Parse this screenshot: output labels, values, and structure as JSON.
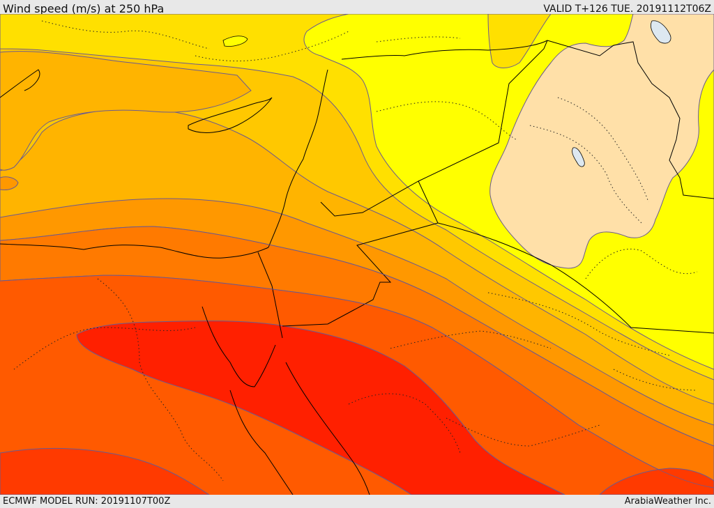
{
  "header": {
    "title": "Wind speed (m/s) at 250 hPa",
    "valid": "VALID T+126 TUE. 20191112T06Z"
  },
  "footer": {
    "model_run": "ECMWF MODEL RUN: 20191107T00Z",
    "credit": "ArabiaWeather Inc."
  },
  "colors": {
    "band_1": "#ffe0a8",
    "band_2": "#ffff00",
    "band_3": "#ffe000",
    "band_4": "#ffc800",
    "band_5": "#ffb400",
    "band_6": "#ff9800",
    "band_7": "#ff7a00",
    "band_8": "#ff5a00",
    "band_9": "#ff3a00",
    "band_10": "#ff2000",
    "water": "#dde8f0",
    "border": "#000000",
    "contour": "#6a5a90"
  }
}
